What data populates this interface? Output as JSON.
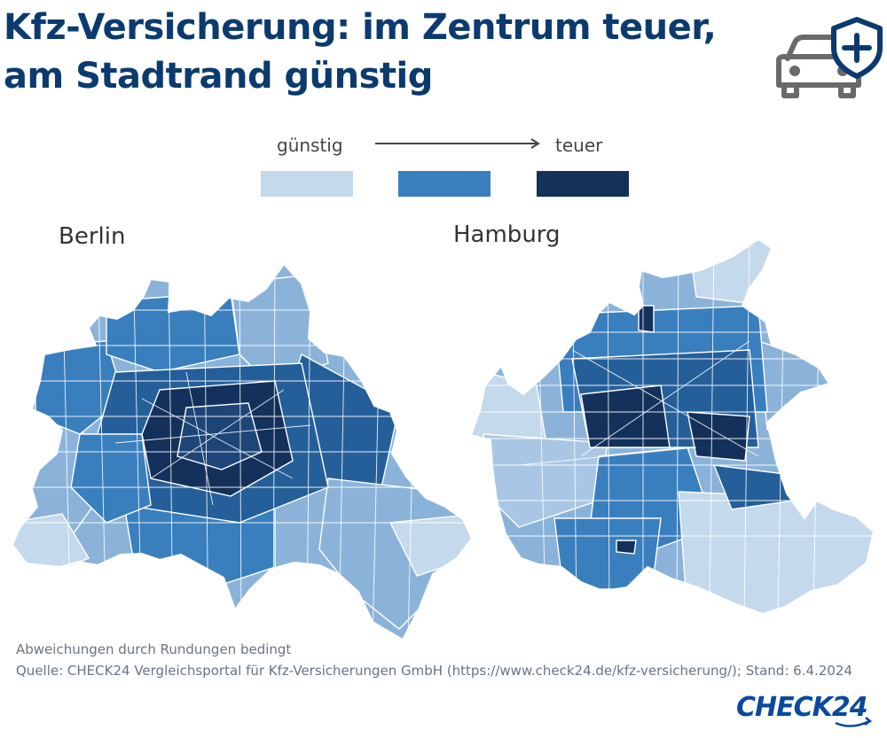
{
  "header": {
    "title_line1": "Kfz-Versicherung: im Zentrum teuer,",
    "title_line2": "am Stadtrand günstig"
  },
  "icons": {
    "car": "car-icon",
    "shield": "shield-plus-icon",
    "arrow": "arrow-right-icon"
  },
  "legend": {
    "low_label": "günstig",
    "high_label": "teuer",
    "levels": [
      {
        "color": "#c5d9ec"
      },
      {
        "color": "#3a7fbd"
      },
      {
        "color": "#14315c"
      }
    ]
  },
  "maps": {
    "berlin": {
      "label": "Berlin"
    },
    "hamburg": {
      "label": "Hamburg"
    }
  },
  "footer": {
    "note": "Abweichungen durch Rundungen bedingt",
    "source": "Quelle: CHECK24 Vergleichsportal für Kfz-Versicherungen GmbH (https://www.check24.de/kfz-versicherung/); Stand: 6.4.2024",
    "brand": "CHECK24"
  },
  "colors": {
    "title": "#0b3a6e",
    "light": "#c5d9ec",
    "medium_light": "#8bb3d9",
    "medium": "#3a7fbd",
    "medium_dark": "#255f99",
    "dark": "#14315c",
    "brand": "#0a4a9c"
  }
}
